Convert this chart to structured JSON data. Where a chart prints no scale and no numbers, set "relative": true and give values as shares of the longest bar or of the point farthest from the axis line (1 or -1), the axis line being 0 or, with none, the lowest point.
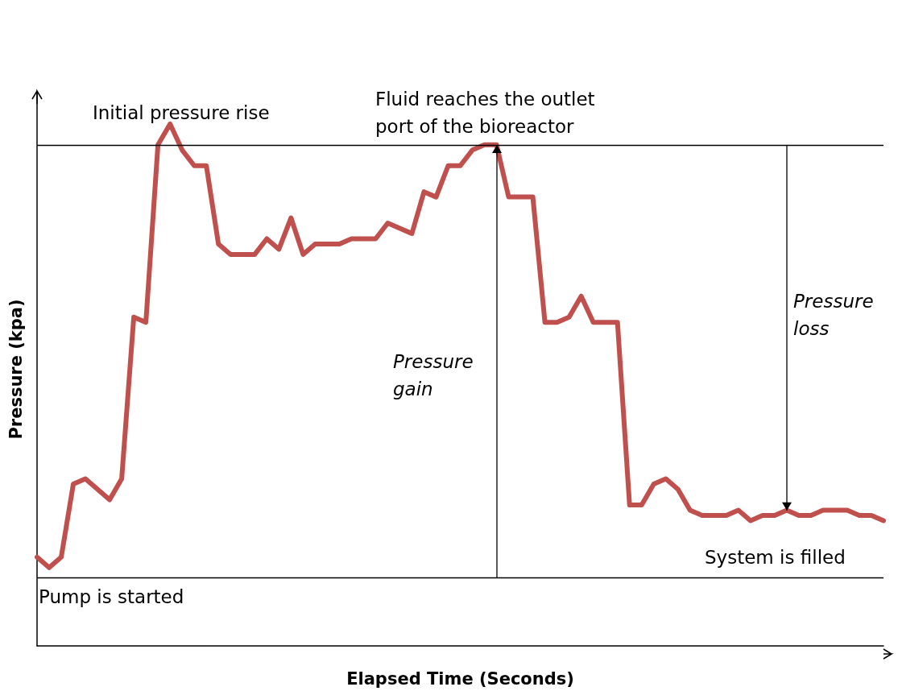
{
  "chart_data": {
    "type": "line",
    "xlabel": "Elapsed Time (Seconds)",
    "ylabel": "Pressure (kpa)",
    "relative": true,
    "grid": false,
    "marker": "none",
    "line_style": "solid",
    "categories": [
      null,
      null,
      null,
      null,
      null,
      null,
      null,
      null,
      null,
      null,
      null,
      null,
      null,
      null,
      null,
      null,
      null,
      null,
      null,
      null,
      null,
      null,
      null,
      null,
      null,
      null,
      null,
      null,
      null,
      null,
      null,
      null,
      null,
      null,
      null,
      null,
      null,
      null,
      null,
      null,
      null,
      null,
      null,
      null,
      null,
      null,
      null,
      null,
      null,
      null,
      null,
      null,
      null,
      null,
      null,
      null,
      null,
      null,
      null,
      null,
      null,
      null,
      null,
      null,
      null,
      null,
      null,
      null,
      null,
      null,
      null
    ],
    "series": [
      {
        "color": "#c0504d",
        "values": [
          0.17,
          0.15,
          0.17,
          0.31,
          0.32,
          0.3,
          0.28,
          0.32,
          0.63,
          0.62,
          0.96,
          1,
          0.95,
          0.92,
          0.92,
          0.77,
          0.75,
          0.75,
          0.75,
          0.78,
          0.76,
          0.82,
          0.75,
          0.77,
          0.77,
          0.77,
          0.78,
          0.78,
          0.78,
          0.81,
          0.8,
          0.79,
          0.87,
          0.86,
          0.92,
          0.92,
          0.95,
          0.96,
          0.96,
          0.86,
          0.86,
          0.86,
          0.62,
          0.62,
          0.63,
          0.67,
          0.62,
          0.62,
          0.62,
          0.27,
          0.27,
          0.31,
          0.32,
          0.3,
          0.26,
          0.25,
          0.25,
          0.25,
          0.26,
          0.24,
          0.25,
          0.25,
          0.26,
          0.25,
          0.25,
          0.26,
          0.26,
          0.26,
          0.25,
          0.25,
          0.24
        ]
      }
    ],
    "ref_lines": [
      {
        "axis": "y",
        "value": 0.13,
        "label": null,
        "color": "#000000"
      },
      {
        "axis": "y",
        "value": 0.96,
        "label": null,
        "color": "#000000"
      }
    ],
    "annotations": [
      "Initial pressure rise",
      "Fluid reaches the outlet port of the bioreactor",
      "Pressure gain",
      "Pressure loss",
      "System is filled",
      "Pump is started"
    ]
  }
}
